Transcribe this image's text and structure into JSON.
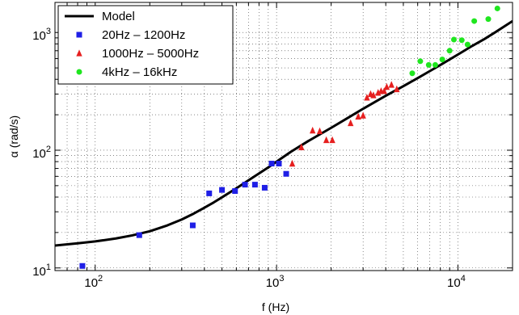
{
  "chart_data": {
    "type": "scatter",
    "title": "",
    "xlabel": "f (Hz)",
    "ylabel": "α (rad/s)",
    "xscale": "log",
    "yscale": "log",
    "xlim": [
      60,
      20000
    ],
    "ylim": [
      9.5,
      1800
    ],
    "grid": true,
    "legend_position": "top-left",
    "x_ticks": [
      {
        "value": 100,
        "base": "10",
        "exp": "2"
      },
      {
        "value": 1000,
        "base": "10",
        "exp": "3"
      },
      {
        "value": 10000,
        "base": "10",
        "exp": "4"
      }
    ],
    "y_ticks": [
      {
        "value": 10,
        "base": "10",
        "exp": "1"
      },
      {
        "value": 100,
        "base": "10",
        "exp": "2"
      },
      {
        "value": 1000,
        "base": "10",
        "exp": "3"
      }
    ],
    "series": [
      {
        "name": "Model",
        "kind": "line",
        "color": "#000000",
        "x": [
          60,
          80,
          100,
          130,
          160,
          200,
          250,
          300,
          350,
          400,
          450,
          500,
          600,
          700,
          800,
          900,
          1000,
          1200,
          1500,
          2000,
          2500,
          3000,
          4000,
          5000,
          6000,
          7000,
          8000,
          10000,
          12000,
          14000,
          16000,
          20000
        ],
        "y": [
          15.5,
          16.2,
          16.8,
          17.8,
          18.9,
          20.5,
          23.0,
          25.8,
          29.0,
          32.5,
          36.0,
          39.8,
          47.5,
          55.5,
          63.5,
          71.5,
          80,
          97,
          120,
          155,
          190,
          225,
          290,
          350,
          410,
          470,
          530,
          650,
          770,
          880,
          1000,
          1250
        ]
      },
      {
        "name": "20Hz – 1200Hz",
        "kind": "scatter",
        "marker": "square",
        "color": "#1f1fe6",
        "x": [
          85,
          175,
          345,
          425,
          500,
          590,
          670,
          760,
          860,
          940,
          1030,
          1130
        ],
        "y": [
          10.4,
          19,
          23,
          43,
          46,
          45,
          51,
          51,
          48,
          77,
          77,
          63
        ]
      },
      {
        "name": "1000Hz – 5000Hz",
        "kind": "scatter",
        "marker": "triangle",
        "color": "#e61f1f",
        "x": [
          1220,
          1370,
          1580,
          1730,
          1880,
          2030,
          2560,
          2820,
          3000,
          3150,
          3300,
          3420,
          3630,
          3770,
          3920,
          4050,
          4300,
          4600
        ],
        "y": [
          77,
          106,
          147,
          145,
          122,
          122,
          170,
          193,
          197,
          280,
          300,
          293,
          308,
          318,
          318,
          345,
          360,
          330
        ]
      },
      {
        "name": "4kHz – 16kHz",
        "kind": "scatter",
        "marker": "circle",
        "color": "#1fe61f",
        "x": [
          5600,
          6200,
          6900,
          7500,
          8200,
          9000,
          9500,
          10500,
          11300,
          12300,
          14700,
          16500
        ],
        "y": [
          450,
          570,
          530,
          530,
          590,
          700,
          870,
          860,
          790,
          1250,
          1300,
          1600
        ]
      }
    ]
  }
}
